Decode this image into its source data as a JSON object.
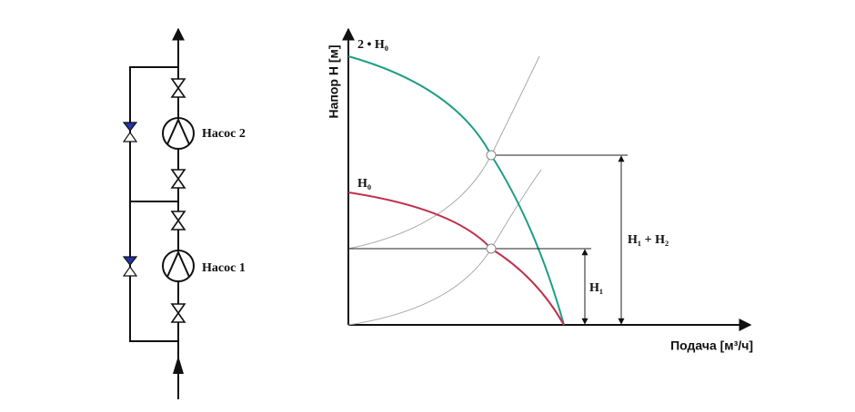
{
  "schematic": {
    "pumps": [
      {
        "label": "Насос 2"
      },
      {
        "label": "Насос 1"
      }
    ]
  },
  "graph": {
    "y_axis_label": "Напор H [м]",
    "x_axis_label": "Подача [м³/ч]",
    "curve_labels": {
      "double_head": "2 • H₀",
      "single_head": "H₀"
    },
    "dimensions": {
      "total": "H₁ + H₂",
      "single": "H₁"
    }
  }
}
